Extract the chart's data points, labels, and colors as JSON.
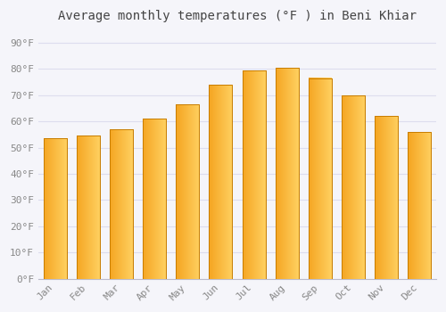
{
  "title": "Average monthly temperatures (°F ) in Beni Khiar",
  "months": [
    "Jan",
    "Feb",
    "Mar",
    "Apr",
    "May",
    "Jun",
    "Jul",
    "Aug",
    "Sep",
    "Oct",
    "Nov",
    "Dec"
  ],
  "values": [
    53.5,
    54.5,
    57,
    61,
    66.5,
    74,
    79.5,
    80.5,
    76.5,
    70,
    62,
    56
  ],
  "bar_color_left": "#F5A623",
  "bar_color_right": "#FFD060",
  "bar_edge_color": "#C87D00",
  "background_color": "#F5F5FA",
  "plot_bg_color": "#F5F5FA",
  "ytick_labels": [
    "0°F",
    "10°F",
    "20°F",
    "30°F",
    "40°F",
    "50°F",
    "60°F",
    "70°F",
    "80°F",
    "90°F"
  ],
  "ytick_values": [
    0,
    10,
    20,
    30,
    40,
    50,
    60,
    70,
    80,
    90
  ],
  "ylim": [
    0,
    95
  ],
  "grid_color": "#ddddee",
  "title_fontsize": 10,
  "tick_fontsize": 8,
  "tick_color": "#888888",
  "font_family": "monospace",
  "bar_width": 0.7
}
